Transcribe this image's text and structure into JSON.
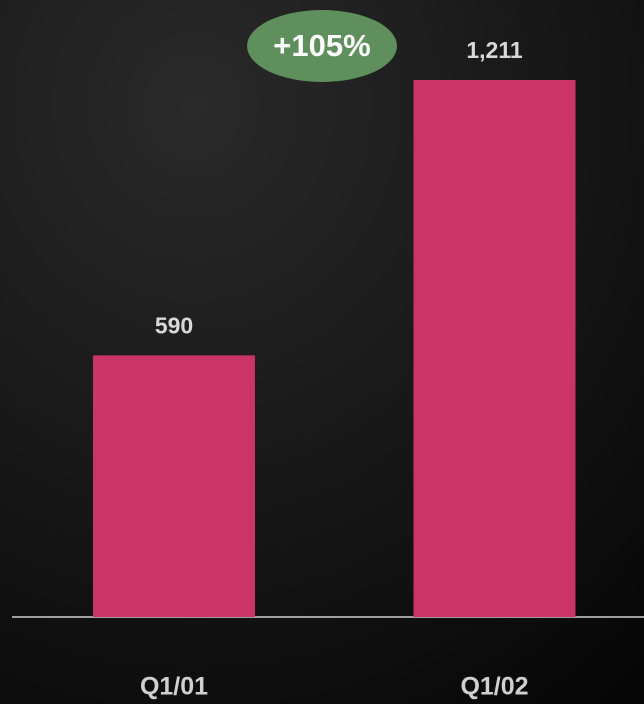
{
  "chart_data": {
    "type": "bar",
    "categories": [
      "Q1/01",
      "Q1/02"
    ],
    "values": [
      590,
      1211
    ],
    "value_labels": [
      "590",
      "1,211"
    ],
    "color": "#cc3366",
    "annotation": "+105%"
  }
}
